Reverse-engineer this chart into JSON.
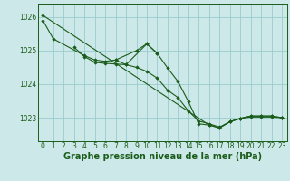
{
  "background_color": "#cce8e8",
  "grid_color": "#99cccc",
  "line_color": "#1a5c1a",
  "marker_color": "#1a5c1a",
  "xlabel": "Graphe pression niveau de la mer (hPa)",
  "xlabel_fontsize": 7,
  "tick_fontsize": 5.5,
  "ytick_labels": [
    1023,
    1024,
    1025,
    1026
  ],
  "ylim": [
    1022.3,
    1026.4
  ],
  "xlim": [
    -0.5,
    23.5
  ],
  "xtick_labels": [
    0,
    1,
    2,
    3,
    4,
    5,
    6,
    7,
    8,
    9,
    10,
    11,
    12,
    13,
    14,
    15,
    16,
    17,
    18,
    19,
    20,
    21,
    22,
    23
  ],
  "series": [
    {
      "x": [
        0,
        1,
        4,
        5,
        6,
        7,
        9,
        10,
        11
      ],
      "y": [
        1025.9,
        1025.35,
        1024.85,
        1024.72,
        1024.68,
        1024.72,
        1025.0,
        1025.2,
        1024.92
      ]
    },
    {
      "x": [
        3,
        4,
        5,
        6,
        7,
        8,
        9,
        10,
        11,
        12,
        13,
        14,
        15,
        16,
        17,
        18,
        19,
        20,
        21,
        22,
        23
      ],
      "y": [
        1025.1,
        1024.82,
        1024.65,
        1024.62,
        1024.6,
        1024.58,
        1024.5,
        1024.38,
        1024.18,
        1023.82,
        1023.6,
        1023.2,
        1022.9,
        1022.82,
        1022.72,
        1022.88,
        1022.98,
        1023.02,
        1023.02,
        1023.02,
        1023.0
      ]
    },
    {
      "x": [
        7,
        8,
        10,
        11,
        12,
        13,
        14,
        15,
        16,
        17,
        18,
        19,
        20,
        21,
        22,
        23
      ],
      "y": [
        1024.72,
        1024.58,
        1025.2,
        1024.92,
        1024.48,
        1024.08,
        1023.48,
        1022.82,
        1022.78,
        1022.7,
        1022.88,
        1022.98,
        1023.05,
        1023.05,
        1023.05,
        1023.0
      ]
    },
    {
      "x": [
        0,
        16,
        17,
        18,
        19,
        20,
        21,
        22,
        23
      ],
      "y": [
        1026.05,
        1022.78,
        1022.7,
        1022.88,
        1022.98,
        1023.05,
        1023.05,
        1023.05,
        1023.0
      ]
    }
  ]
}
